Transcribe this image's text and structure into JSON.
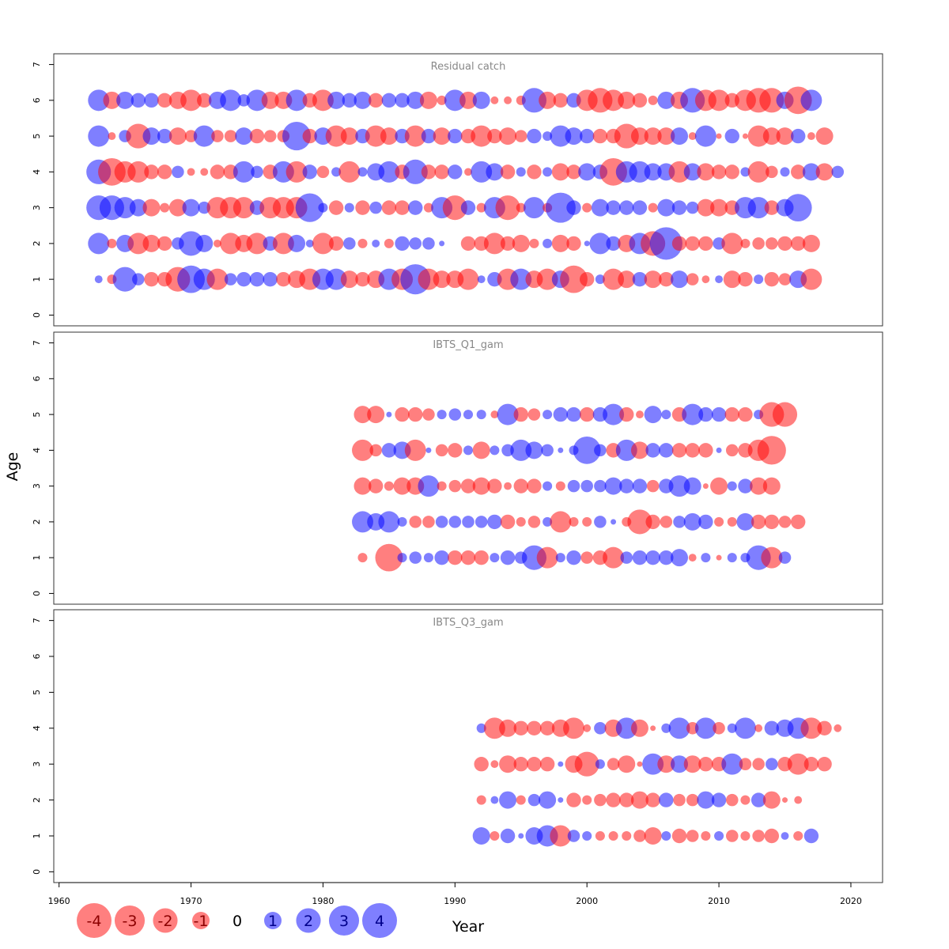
{
  "colors": {
    "negative": "#ff0000",
    "positive": "#0000ff",
    "bubble_opacity": 0.5,
    "frame": "#333333"
  },
  "chart_data": {
    "type": "scatter",
    "subtype": "bubble",
    "xlabel": "Year",
    "ylabel": "Age",
    "x_ticks": [
      1960,
      1970,
      1980,
      1990,
      2000,
      2010,
      2020
    ],
    "y_ticks": [
      0,
      1,
      2,
      3,
      4,
      5,
      6,
      7
    ],
    "xlim": [
      1959.6,
      2022.4
    ],
    "ylim": [
      -0.3,
      7.3
    ],
    "legend": {
      "position": "bottom-left",
      "entries": [
        {
          "label": "-4",
          "value": -4
        },
        {
          "label": "-3",
          "value": -3
        },
        {
          "label": "-2",
          "value": -2
        },
        {
          "label": "-1",
          "value": -1
        },
        {
          "label": "0",
          "value": 0
        },
        {
          "label": "1",
          "value": 1
        },
        {
          "label": "2",
          "value": 2
        },
        {
          "label": "3",
          "value": 3
        },
        {
          "label": "4",
          "value": 4
        }
      ]
    },
    "panels": [
      {
        "title": "Residual catch",
        "first_year": 1963,
        "series": [
          {
            "age": 6,
            "residuals": [
              1.5,
              -1.0,
              1.0,
              0.7,
              0.7,
              -0.7,
              -1.0,
              -1.5,
              -0.7,
              1.0,
              1.5,
              0.5,
              1.5,
              -1.0,
              -1.0,
              1.5,
              -0.7,
              -1.5,
              1.0,
              0.7,
              1.0,
              -0.7,
              0.7,
              0.7,
              1.0,
              -1.0,
              -0.3,
              1.5,
              -1.0,
              1.0,
              -0.2,
              -0.2,
              -0.3,
              2.0,
              -1.0,
              -0.7,
              0.7,
              -1.5,
              -2.0,
              -1.5,
              -1.0,
              -0.7,
              -0.3,
              1.0,
              -1.0,
              2.0,
              -1.5,
              -1.5,
              -0.7,
              -1.5,
              -2.0,
              -2.0,
              1.0,
              -2.5,
              1.5
            ]
          },
          {
            "age": 5,
            "residuals": [
              1.5,
              -0.2,
              0.5,
              -2.0,
              1.0,
              0.7,
              -1.0,
              -0.5,
              1.5,
              -0.5,
              -0.5,
              1.0,
              -0.7,
              -0.5,
              -0.5,
              2.7,
              -0.7,
              1.0,
              -1.5,
              -1.0,
              0.7,
              -1.5,
              -1.0,
              0.7,
              -1.5,
              0.7,
              -1.0,
              0.7,
              -0.7,
              -1.5,
              -0.7,
              -1.0,
              -0.5,
              0.7,
              0.3,
              1.5,
              1.0,
              0.7,
              -0.7,
              -0.7,
              -2.0,
              -1.0,
              -1.0,
              -1.0,
              1.0,
              -0.2,
              1.5,
              -0.1,
              0.7,
              -0.1,
              -1.5,
              -1.0,
              -1.0,
              0.7,
              -0.2,
              -1.0
            ]
          },
          {
            "age": 4,
            "residuals": [
              2.0,
              -2.5,
              -1.5,
              -1.5,
              -0.7,
              -0.7,
              0.5,
              -0.2,
              -0.2,
              -0.7,
              -0.7,
              1.5,
              0.5,
              -0.7,
              1.5,
              -1.5,
              0.7,
              -0.5,
              0.3,
              -1.5,
              0.3,
              1.0,
              1.5,
              -0.7,
              2.0,
              -0.7,
              -0.7,
              0.7,
              -0.2,
              1.5,
              1.0,
              -0.7,
              0.3,
              -0.7,
              0.3,
              -1.0,
              -0.7,
              1.0,
              0.7,
              -2.5,
              1.5,
              1.5,
              1.0,
              1.0,
              -1.5,
              1.0,
              -1.0,
              -0.7,
              -0.7,
              0.3,
              -1.5,
              -0.5,
              0.3,
              -0.7,
              1.0,
              -1.0,
              0.5
            ]
          },
          {
            "age": 3,
            "residuals": [
              2.0,
              2.0,
              1.5,
              1.0,
              -1.0,
              -0.3,
              -1.0,
              1.0,
              0.5,
              -1.5,
              -1.5,
              -1.5,
              0.7,
              -1.5,
              -1.5,
              -1.5,
              2.7,
              0.3,
              -0.7,
              0.3,
              -0.7,
              0.5,
              -0.7,
              -0.7,
              0.7,
              -0.3,
              1.5,
              -2.0,
              0.7,
              -0.3,
              1.5,
              -2.0,
              -0.3,
              1.5,
              -0.3,
              3.0,
              0.7,
              -0.3,
              1.0,
              0.7,
              0.7,
              0.7,
              -0.3,
              1.0,
              0.7,
              0.5,
              -1.0,
              -1.0,
              -0.7,
              1.5,
              1.5,
              -0.7,
              1.0,
              2.5
            ]
          },
          {
            "age": 2,
            "residuals": [
              1.5,
              -0.3,
              1.0,
              -1.5,
              -1.0,
              -0.7,
              0.5,
              2.0,
              1.0,
              -0.2,
              -1.5,
              -1.0,
              -1.5,
              0.7,
              -1.5,
              1.0,
              0.2,
              -1.5,
              -0.7,
              0.5,
              -0.3,
              0.2,
              -0.3,
              0.7,
              0.5,
              0.5,
              0.1,
              0,
              -0.7,
              -0.7,
              -1.5,
              -0.7,
              -1.0,
              -0.3,
              0.3,
              -1.0,
              -0.7,
              0.1,
              1.5,
              0.7,
              -1.0,
              1.5,
              -2.0,
              3.5,
              -0.7,
              -0.7,
              -0.7,
              0.5,
              -1.5,
              -0.3,
              -0.5,
              -0.5,
              -0.7,
              -0.7,
              -1.0
            ]
          },
          {
            "age": 1,
            "residuals": [
              0.2,
              -0.3,
              2.0,
              0.5,
              -0.7,
              -0.7,
              -2.0,
              2.5,
              1.5,
              -1.5,
              0.5,
              0.7,
              0.7,
              0.7,
              -0.7,
              -1.0,
              -1.5,
              1.5,
              1.5,
              -1.0,
              -0.7,
              -1.0,
              1.5,
              -1.5,
              3.0,
              -1.5,
              -1.0,
              -1.0,
              -1.5,
              0.2,
              0.7,
              -1.5,
              1.5,
              -1.0,
              -1.5,
              1.0,
              -2.5,
              -0.7,
              0.3,
              -1.5,
              -1.0,
              0.7,
              -1.0,
              -0.7,
              1.0,
              -0.5,
              -0.2,
              0.2,
              -1.0,
              -0.7,
              0.3,
              -0.7,
              -0.5,
              1.0,
              -1.5
            ]
          }
        ]
      },
      {
        "title": "IBTS_Q1_gam",
        "first_year": 1983,
        "series": [
          {
            "age": 5,
            "residuals": [
              -1.0,
              -1.0,
              0.1,
              -0.7,
              -0.7,
              -0.5,
              0.3,
              0.5,
              0.3,
              0.3,
              -0.2,
              1.5,
              -0.7,
              -0.5,
              0.3,
              0.7,
              0.7,
              -0.7,
              0.7,
              1.5,
              -0.7,
              -0.2,
              1.0,
              0.3,
              -0.7,
              1.5,
              0.7,
              0.7,
              -0.7,
              -0.7,
              0.3,
              -2.0,
              -2.0
            ]
          },
          {
            "age": 4,
            "residuals": [
              -1.5,
              -0.5,
              0.7,
              1.0,
              -1.5,
              0.1,
              -0.5,
              -0.7,
              0.3,
              -1.0,
              0.3,
              0.5,
              1.5,
              1.0,
              0.5,
              0.1,
              0.3,
              2.5,
              0.5,
              -0.7,
              1.5,
              -1.0,
              0.7,
              0.7,
              -0.7,
              -0.7,
              -0.7,
              0.1,
              -0.5,
              -0.7,
              -1.5,
              -2.7
            ]
          },
          {
            "age": 3,
            "residuals": [
              -1.0,
              -0.7,
              -0.3,
              -1.0,
              -1.0,
              1.5,
              -0.3,
              -0.5,
              -0.7,
              -1.0,
              -0.7,
              -0.2,
              -0.7,
              -0.7,
              0.3,
              -0.3,
              0.5,
              0.5,
              0.5,
              1.0,
              0.7,
              0.7,
              -0.5,
              0.7,
              1.5,
              1.0,
              -0.1,
              -1.0,
              0.3,
              0.7,
              -1.0,
              -1.0
            ]
          },
          {
            "age": 2,
            "residuals": [
              1.5,
              1.0,
              1.5,
              0.3,
              -0.5,
              -0.5,
              0.5,
              0.5,
              0.5,
              0.5,
              0.7,
              -0.7,
              -0.3,
              -0.5,
              0.3,
              -1.5,
              -0.3,
              -0.3,
              0.5,
              0.1,
              -0.3,
              -2.0,
              -0.7,
              -0.5,
              0.5,
              1.0,
              0.7,
              -0.3,
              -0.3,
              1.0,
              -0.7,
              -0.7,
              -0.5,
              -0.7
            ]
          },
          {
            "age": 1,
            "residuals": [
              -0.3,
              0,
              -2.5,
              0.3,
              0.5,
              0.3,
              0.7,
              -0.7,
              -0.7,
              -0.7,
              0.3,
              0.7,
              0.5,
              2.0,
              -1.5,
              0.3,
              0.7,
              -0.5,
              -0.7,
              -1.5,
              0.5,
              0.7,
              0.7,
              0.7,
              1.0,
              -0.2,
              0.3,
              -0.1,
              0.3,
              0.3,
              2.0,
              -1.5,
              0.5
            ]
          }
        ]
      },
      {
        "title": "IBTS_Q3_gam",
        "first_year": 1992,
        "series": [
          {
            "age": 4,
            "residuals": [
              0.3,
              -1.5,
              -1.0,
              -0.7,
              -0.7,
              -0.7,
              -1.0,
              -1.5,
              -0.2,
              0.5,
              -1.0,
              1.5,
              -1.0,
              -0.1,
              0.3,
              1.5,
              -0.5,
              1.5,
              -0.5,
              0.3,
              1.5,
              -0.2,
              0.7,
              1.0,
              1.5,
              -1.5,
              -0.7,
              -0.2
            ]
          },
          {
            "age": 3,
            "residuals": [
              -0.7,
              -0.2,
              -1.0,
              -0.7,
              -0.7,
              -0.7,
              0.1,
              -1.0,
              -2.0,
              0.3,
              -0.5,
              -1.0,
              -0.1,
              1.5,
              -1.0,
              1.0,
              -1.0,
              -0.7,
              -0.7,
              1.5,
              -0.5,
              -0.5,
              0.5,
              -0.7,
              -1.5,
              -0.7,
              -0.7
            ]
          },
          {
            "age": 2,
            "residuals": [
              -0.3,
              0.2,
              1.0,
              -0.3,
              0.5,
              1.0,
              0.1,
              -0.7,
              -0.3,
              -0.5,
              -0.7,
              -0.7,
              -1.0,
              -0.7,
              0.7,
              -0.5,
              -0.5,
              1.0,
              0.7,
              -0.5,
              -0.3,
              0.7,
              -1.0,
              -0.1,
              -0.2
            ]
          },
          {
            "age": 1,
            "residuals": [
              1.0,
              -0.3,
              0.7,
              0.1,
              1.0,
              1.5,
              -1.5,
              0.5,
              0.3,
              -0.3,
              -0.3,
              -0.3,
              -0.5,
              -1.0,
              0.3,
              -0.7,
              -0.5,
              -0.3,
              0.3,
              -0.5,
              -0.3,
              -0.5,
              -0.7,
              0.2,
              -0.3,
              0.7
            ]
          }
        ]
      }
    ]
  }
}
